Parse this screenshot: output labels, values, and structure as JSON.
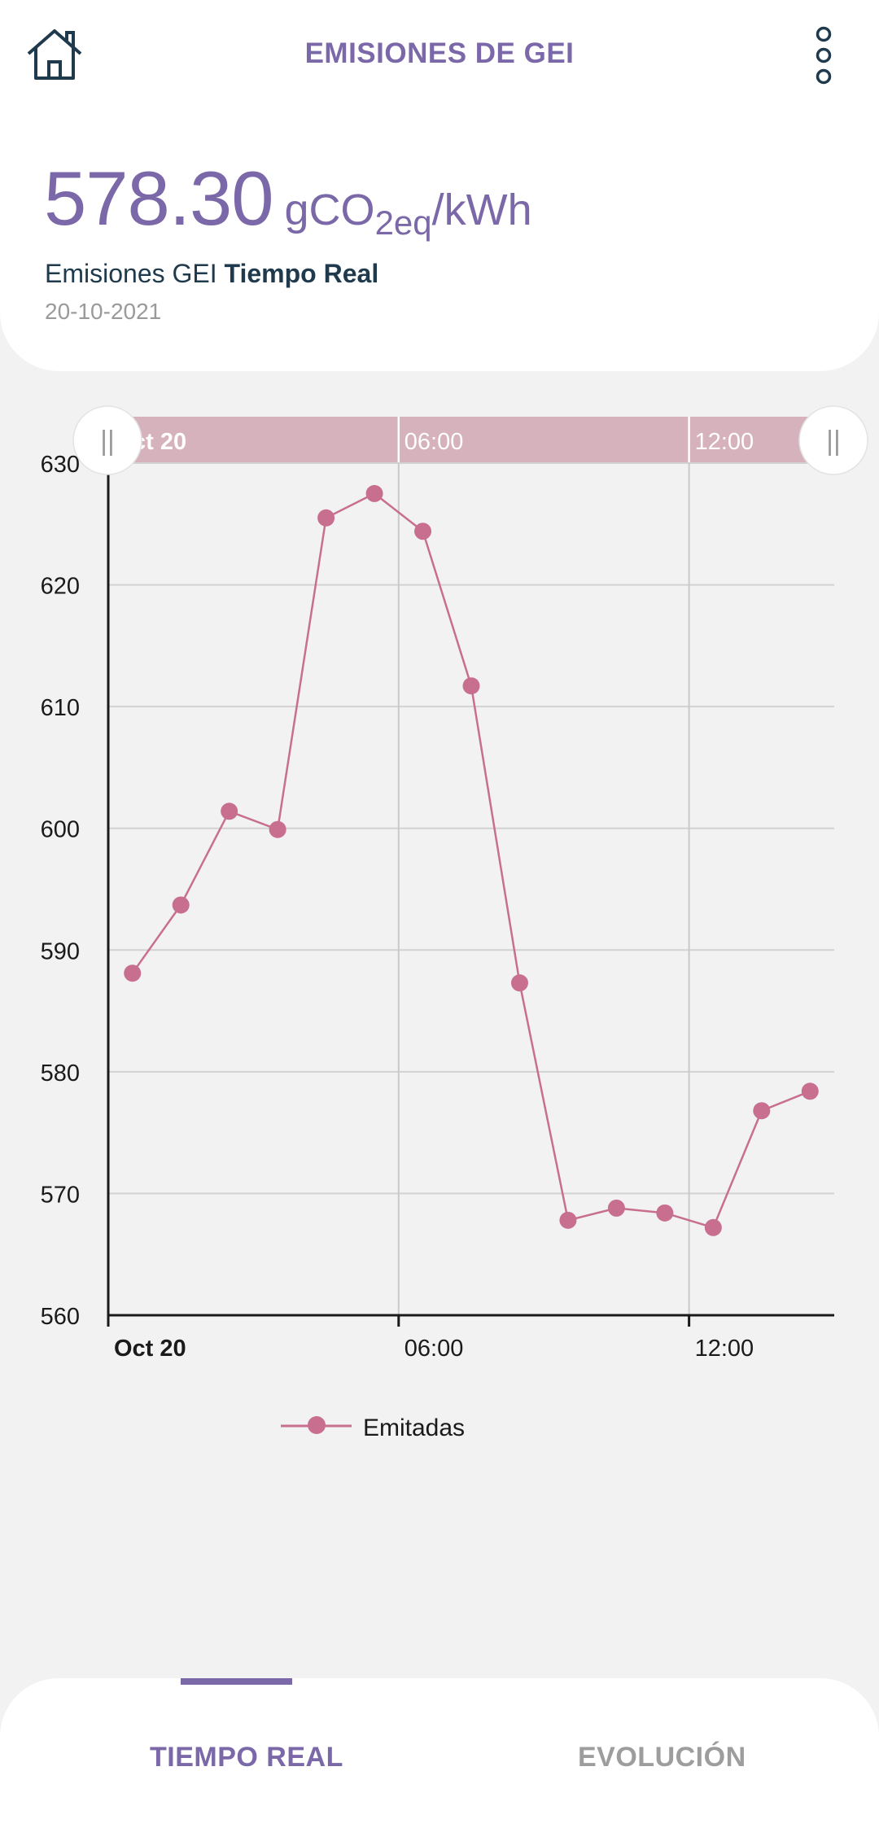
{
  "header": {
    "title": "EMISIONES DE GEI",
    "home_icon": "home-icon",
    "menu_icon": "more-vertical-icon"
  },
  "summary": {
    "value": "578.30",
    "unit_main": "gCO",
    "unit_sub": "2eq",
    "unit_tail": "/kWh",
    "label_prefix": "Emisiones GEI",
    "label_bold": "Tiempo Real",
    "date": "20-10-2021"
  },
  "range_selector": {
    "labels": [
      "ct 20",
      "06:00",
      "12:00"
    ],
    "handle_glyph": "||"
  },
  "chart_data": {
    "type": "line",
    "x_tick_labels": [
      "Oct 20",
      "06:00",
      "12:00"
    ],
    "y_ticks": [
      560,
      570,
      580,
      590,
      600,
      610,
      620,
      630
    ],
    "ylim": [
      560,
      630
    ],
    "grid": true,
    "legend": "bottom",
    "series": [
      {
        "name": "Emitadas",
        "color": "#c86f90",
        "x": [
          "00:30",
          "01:30",
          "02:30",
          "03:30",
          "04:30",
          "05:30",
          "06:30",
          "07:30",
          "08:30",
          "09:30",
          "10:30",
          "11:30",
          "12:30",
          "13:30",
          "14:30"
        ],
        "values": [
          588.1,
          593.7,
          601.4,
          599.9,
          625.5,
          627.5,
          624.4,
          611.7,
          587.3,
          567.8,
          568.8,
          568.4,
          567.2,
          576.8,
          578.4
        ]
      }
    ]
  },
  "tabs": [
    {
      "label": "TIEMPO REAL",
      "active": true
    },
    {
      "label": "EVOLUCIÓN",
      "active": false
    }
  ],
  "colors": {
    "accent": "#7b68a8",
    "series": "#c86f90",
    "navigator": "#d6b2bd"
  }
}
